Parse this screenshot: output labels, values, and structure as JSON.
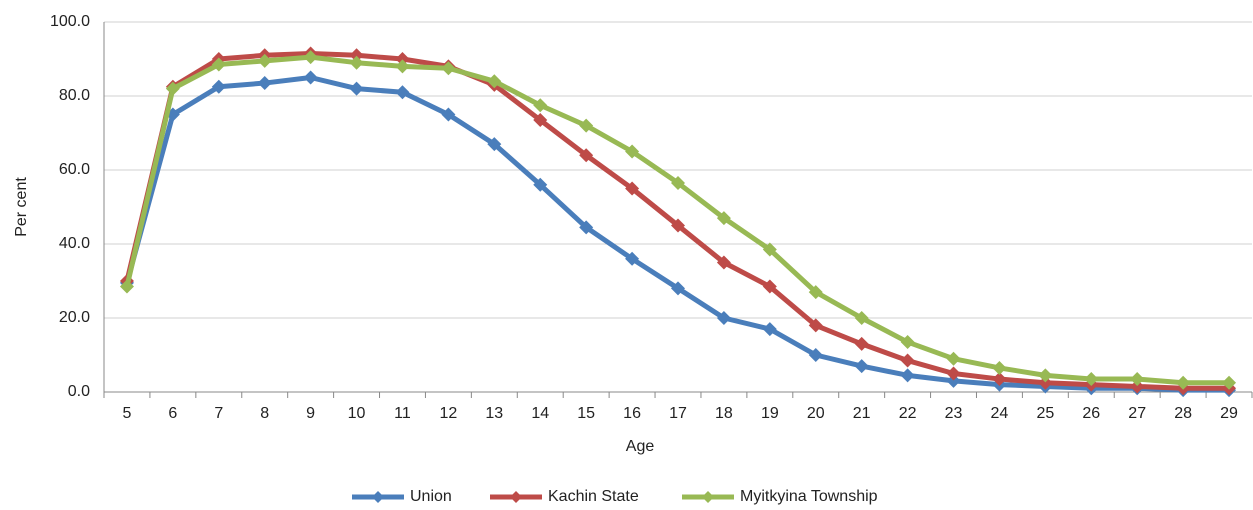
{
  "chart_data": {
    "type": "line",
    "x_label": "Age",
    "y_label": "Per cent",
    "categories": [
      "5",
      "6",
      "7",
      "8",
      "9",
      "10",
      "11",
      "12",
      "13",
      "14",
      "15",
      "16",
      "17",
      "18",
      "19",
      "20",
      "21",
      "22",
      "23",
      "24",
      "25",
      "26",
      "27",
      "28",
      "29"
    ],
    "series": [
      {
        "name": "Union",
        "color": "#4a7ebb",
        "values": [
          29.5,
          75,
          82.5,
          83.5,
          85,
          82,
          81,
          75,
          67,
          56,
          44.5,
          36,
          28,
          20,
          17,
          10,
          7,
          4.5,
          3,
          2,
          1.5,
          1,
          1,
          0.5,
          0.5
        ]
      },
      {
        "name": "Kachin State",
        "color": "#be4b48",
        "values": [
          30,
          82.5,
          90,
          91,
          91.5,
          91,
          90,
          88,
          83,
          73.5,
          64,
          55,
          45,
          35,
          28.5,
          18,
          13,
          8.5,
          5,
          3.5,
          2.5,
          2,
          1.5,
          1,
          1
        ]
      },
      {
        "name": "Myitkyina Township",
        "color": "#98b954",
        "values": [
          28.5,
          82,
          88.5,
          89.5,
          90.5,
          89,
          88,
          87.5,
          84,
          77.5,
          72,
          65,
          56.5,
          47,
          38.5,
          27,
          20,
          13.5,
          9,
          6.5,
          4.5,
          3.5,
          3.5,
          2.5,
          2.5
        ]
      }
    ],
    "ylim": [
      0,
      100
    ],
    "yticks": [
      {
        "value": 0,
        "label": "0.0"
      },
      {
        "value": 20,
        "label": "20.0"
      },
      {
        "value": 40,
        "label": "40.0"
      },
      {
        "value": 60,
        "label": "60.0"
      },
      {
        "value": 80,
        "label": "80.0"
      },
      {
        "value": 100,
        "label": "100.0"
      }
    ],
    "grid": true,
    "legend": "bottom"
  }
}
